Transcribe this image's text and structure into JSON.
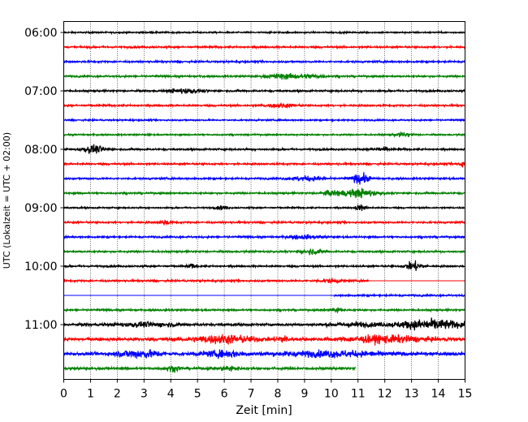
{
  "chart_data": {
    "type": "line",
    "title": "",
    "xlabel": "Zeit  [min]",
    "ylabel": "UTC (Lokalzeit = UTC + 02:00)",
    "xlim": [
      0,
      15
    ],
    "x_ticks": [
      0,
      1,
      2,
      3,
      4,
      5,
      6,
      7,
      8,
      9,
      10,
      11,
      12,
      13,
      14,
      15
    ],
    "x_tick_labels": [
      "0",
      "1",
      "2",
      "3",
      "4",
      "5",
      "6",
      "7",
      "8",
      "9",
      "10",
      "11",
      "12",
      "13",
      "14",
      "15"
    ],
    "y_tick_labels": [
      "06:00",
      "07:00",
      "08:00",
      "09:00",
      "10:00",
      "11:00"
    ],
    "y_tick_trace_index": [
      0,
      4,
      8,
      12,
      16,
      20
    ],
    "grid": "vertical dotted at each minute",
    "trace_minutes": 15,
    "trace_colors": [
      "#000000",
      "#ff0000",
      "#0000ff",
      "#008000"
    ],
    "series": [
      {
        "start_time": "06:00",
        "start_min": 0,
        "end_min": 15,
        "amplitude": 0.25,
        "events": []
      },
      {
        "start_time": "06:15",
        "start_min": 0,
        "end_min": 15,
        "amplitude": 0.3,
        "events": []
      },
      {
        "start_time": "06:30",
        "start_min": 0,
        "end_min": 15,
        "amplitude": 0.3,
        "events": []
      },
      {
        "start_time": "06:45",
        "start_min": 0,
        "end_min": 15,
        "amplitude": 0.3,
        "events": [
          {
            "t": 8.2,
            "amp": 0.8,
            "dur": 0.6
          },
          {
            "t": 9.2,
            "amp": 0.6,
            "dur": 0.5
          }
        ]
      },
      {
        "start_time": "07:00",
        "start_min": 0,
        "end_min": 15,
        "amplitude": 0.3,
        "events": [
          {
            "t": 4.5,
            "amp": 0.8,
            "dur": 0.6
          }
        ]
      },
      {
        "start_time": "07:15",
        "start_min": 0,
        "end_min": 15,
        "amplitude": 0.3,
        "events": [
          {
            "t": 8.1,
            "amp": 0.7,
            "dur": 0.5
          }
        ]
      },
      {
        "start_time": "07:30",
        "start_min": 0,
        "end_min": 15,
        "amplitude": 0.25,
        "events": []
      },
      {
        "start_time": "07:45",
        "start_min": 0,
        "end_min": 15,
        "amplitude": 0.25,
        "events": [
          {
            "t": 12.7,
            "amp": 0.8,
            "dur": 0.3
          }
        ]
      },
      {
        "start_time": "08:00",
        "start_min": 0,
        "end_min": 15,
        "amplitude": 0.3,
        "events": [
          {
            "t": 1.1,
            "amp": 1.3,
            "dur": 0.4
          },
          {
            "t": 11.8,
            "amp": 0.7,
            "dur": 0.3
          }
        ]
      },
      {
        "start_time": "08:15",
        "start_min": 0,
        "end_min": 15,
        "amplitude": 0.3,
        "events": [
          {
            "t": 14.9,
            "amp": 0.7,
            "dur": 0.2
          }
        ]
      },
      {
        "start_time": "08:30",
        "start_min": 0,
        "end_min": 15,
        "amplitude": 0.3,
        "events": [
          {
            "t": 9.1,
            "amp": 0.7,
            "dur": 0.6
          },
          {
            "t": 11.1,
            "amp": 1.8,
            "dur": 0.3
          }
        ]
      },
      {
        "start_time": "08:45",
        "start_min": 0,
        "end_min": 15,
        "amplitude": 0.3,
        "events": [
          {
            "t": 11.1,
            "amp": 1.4,
            "dur": 0.6
          },
          {
            "t": 10.1,
            "amp": 0.8,
            "dur": 0.4
          }
        ]
      },
      {
        "start_time": "09:00",
        "start_min": 0,
        "end_min": 15,
        "amplitude": 0.25,
        "events": [
          {
            "t": 5.9,
            "amp": 0.6,
            "dur": 0.2
          },
          {
            "t": 11.1,
            "amp": 0.9,
            "dur": 0.2
          }
        ]
      },
      {
        "start_time": "09:15",
        "start_min": 0,
        "end_min": 15,
        "amplitude": 0.3,
        "events": [
          {
            "t": 3.8,
            "amp": 0.8,
            "dur": 0.2
          }
        ]
      },
      {
        "start_time": "09:30",
        "start_min": 0,
        "end_min": 15,
        "amplitude": 0.3,
        "events": [
          {
            "t": 9.0,
            "amp": 0.6,
            "dur": 0.6
          }
        ]
      },
      {
        "start_time": "09:45",
        "start_min": 0,
        "end_min": 15,
        "amplitude": 0.3,
        "events": [
          {
            "t": 9.3,
            "amp": 0.8,
            "dur": 0.4
          }
        ]
      },
      {
        "start_time": "10:00",
        "start_min": 0,
        "end_min": 15,
        "amplitude": 0.3,
        "events": [
          {
            "t": 4.8,
            "amp": 0.6,
            "dur": 0.2
          },
          {
            "t": 13.1,
            "amp": 1.6,
            "dur": 0.3
          }
        ]
      },
      {
        "start_time": "10:15",
        "start_min": 0,
        "end_min": 11.4,
        "amplitude": 0.3,
        "events": [
          {
            "t": 10.0,
            "amp": 0.6,
            "dur": 0.4
          }
        ]
      },
      {
        "start_time": "10:30",
        "start_min": 10.1,
        "end_min": 15,
        "amplitude": 0.3,
        "events": []
      },
      {
        "start_time": "10:45",
        "start_min": 0,
        "end_min": 15,
        "amplitude": 0.3,
        "events": [
          {
            "t": 10.2,
            "amp": 0.9,
            "dur": 0.2
          }
        ]
      },
      {
        "start_time": "11:00",
        "start_min": 0,
        "end_min": 15,
        "amplitude": 0.4,
        "events": [
          {
            "t": 13.7,
            "amp": 1.7,
            "dur": 1.2
          },
          {
            "t": 3.1,
            "amp": 0.6,
            "dur": 1.2
          },
          {
            "t": 10.8,
            "amp": 0.6,
            "dur": 1.0
          }
        ]
      },
      {
        "start_time": "11:15",
        "start_min": 0,
        "end_min": 15,
        "amplitude": 0.5,
        "events": [
          {
            "t": 6.0,
            "amp": 1.3,
            "dur": 1.2
          },
          {
            "t": 12.0,
            "amp": 1.1,
            "dur": 1.5
          },
          {
            "t": 8.2,
            "amp": 0.9,
            "dur": 0.3
          }
        ]
      },
      {
        "start_time": "11:30",
        "start_min": 0,
        "end_min": 15,
        "amplitude": 0.5,
        "events": [
          {
            "t": 2.8,
            "amp": 1.3,
            "dur": 0.8
          },
          {
            "t": 6.0,
            "amp": 1.0,
            "dur": 0.8
          },
          {
            "t": 10.0,
            "amp": 0.9,
            "dur": 2.0
          }
        ]
      },
      {
        "start_time": "11:45",
        "start_min": 0,
        "end_min": 10.9,
        "amplitude": 0.4,
        "events": [
          {
            "t": 4.1,
            "amp": 0.8,
            "dur": 0.3
          },
          {
            "t": 6.2,
            "amp": 0.8,
            "dur": 0.3
          }
        ]
      }
    ]
  }
}
